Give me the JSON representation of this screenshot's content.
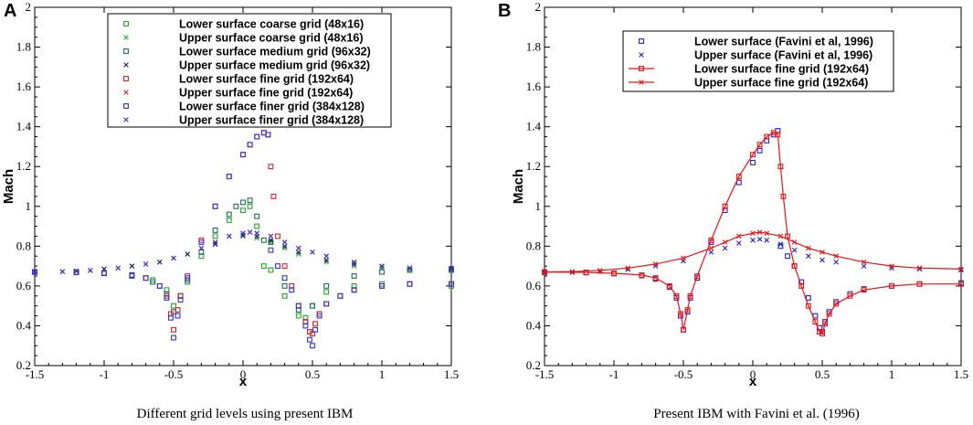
{
  "chart_data": [
    {
      "panel": "A",
      "type": "scatter",
      "caption": "Different grid levels using present IBM",
      "xlabel": "x",
      "ylabel": "Mach",
      "xlim": [
        -1.5,
        1.5
      ],
      "ylim": [
        0.2,
        2.0
      ],
      "xticks": [
        -1.5,
        -1,
        -0.5,
        0,
        0.5,
        1,
        1.5
      ],
      "xtick_labels": [
        "-1.5",
        "-1",
        "-0.5",
        "0",
        "0.5",
        "1",
        "1.5"
      ],
      "yticks": [
        0.2,
        0.4,
        0.6,
        0.8,
        1.0,
        1.2,
        1.4,
        1.6,
        1.8,
        2.0
      ],
      "ytick_labels": [
        "0.2",
        "0.4",
        "0.6",
        "0.8",
        "1",
        "1.2",
        "1.4",
        "1.6",
        "1.8",
        "2"
      ],
      "legend_position": "top-right",
      "series": [
        {
          "name": "Lower surface coarse grid (48x16)",
          "color": "#22aa22",
          "marker": "square",
          "x": [
            -1.5,
            -1.2,
            -1.0,
            -0.8,
            -0.65,
            -0.55,
            -0.5,
            -0.45,
            -0.4,
            -0.3,
            -0.2,
            -0.1,
            0.0,
            0.05,
            0.1,
            0.15,
            0.2,
            0.3,
            0.4,
            0.45,
            0.5,
            0.6,
            0.8,
            1.0,
            1.2,
            1.5
          ],
          "y": [
            0.67,
            0.67,
            0.665,
            0.655,
            0.63,
            0.58,
            0.5,
            0.55,
            0.62,
            0.75,
            0.85,
            0.93,
            0.98,
            1.0,
            0.9,
            0.7,
            0.68,
            0.55,
            0.45,
            0.44,
            0.5,
            0.57,
            0.6,
            0.61,
            0.61,
            0.6
          ]
        },
        {
          "name": "Upper surface coarse grid (48x16)",
          "color": "#22aa22",
          "marker": "x",
          "x": [
            -1.5,
            -1.2,
            -1.0,
            -0.8,
            -0.6,
            -0.4,
            -0.2,
            0.0,
            0.1,
            0.2,
            0.3,
            0.4,
            0.6,
            0.8,
            1.0,
            1.2,
            1.5
          ],
          "y": [
            0.67,
            0.675,
            0.685,
            0.7,
            0.72,
            0.76,
            0.81,
            0.85,
            0.84,
            0.82,
            0.79,
            0.76,
            0.72,
            0.7,
            0.69,
            0.68,
            0.68
          ]
        },
        {
          "name": "Lower surface medium grid (96x32)",
          "color": "#1f6b5e",
          "marker": "square",
          "x": [
            -1.5,
            -1.2,
            -1.0,
            -0.8,
            -0.65,
            -0.55,
            -0.5,
            -0.45,
            -0.4,
            -0.3,
            -0.2,
            -0.1,
            -0.05,
            0.0,
            0.05,
            0.1,
            0.15,
            0.2,
            0.3,
            0.4,
            0.45,
            0.5,
            0.6,
            0.8,
            1.0,
            1.2,
            1.5
          ],
          "y": [
            0.67,
            0.668,
            0.663,
            0.65,
            0.62,
            0.56,
            0.47,
            0.55,
            0.63,
            0.77,
            0.88,
            0.96,
            1.0,
            1.02,
            1.03,
            0.95,
            0.83,
            0.82,
            0.6,
            0.48,
            0.42,
            0.5,
            0.6,
            0.65,
            0.67,
            0.68,
            0.68
          ]
        },
        {
          "name": "Upper surface medium grid (96x32)",
          "color": "#1a1a6e",
          "marker": "x",
          "x": [
            -1.5,
            -1.2,
            -1.0,
            -0.8,
            -0.6,
            -0.4,
            -0.2,
            0.0,
            0.1,
            0.2,
            0.3,
            0.4,
            0.6,
            0.8,
            1.0,
            1.2,
            1.5
          ],
          "y": [
            0.67,
            0.675,
            0.685,
            0.7,
            0.72,
            0.76,
            0.81,
            0.855,
            0.85,
            0.83,
            0.8,
            0.77,
            0.73,
            0.71,
            0.7,
            0.69,
            0.69
          ]
        },
        {
          "name": "Lower surface fine grid (192x64)",
          "color": "#dd2222",
          "marker": "square",
          "x": [
            -1.5,
            -1.2,
            -1.0,
            -0.8,
            -0.7,
            -0.6,
            -0.55,
            -0.52,
            -0.5,
            -0.47,
            -0.45,
            -0.4,
            -0.3,
            -0.2,
            -0.1,
            0.0,
            0.05,
            0.1,
            0.15,
            0.18,
            0.2,
            0.22,
            0.25,
            0.3,
            0.35,
            0.4,
            0.45,
            0.48,
            0.5,
            0.52,
            0.55,
            0.6,
            0.7,
            0.8,
            1.0,
            1.2,
            1.5
          ],
          "y": [
            0.67,
            0.668,
            0.664,
            0.655,
            0.64,
            0.6,
            0.55,
            0.46,
            0.38,
            0.48,
            0.55,
            0.65,
            0.83,
            1.0,
            1.15,
            1.26,
            1.31,
            1.35,
            1.37,
            1.36,
            1.2,
            1.05,
            0.85,
            0.7,
            0.6,
            0.5,
            0.42,
            0.37,
            0.36,
            0.41,
            0.46,
            0.51,
            0.55,
            0.58,
            0.6,
            0.61,
            0.61
          ]
        },
        {
          "name": "Upper surface fine grid (192x64)",
          "color": "#dd2222",
          "marker": "x",
          "x": [
            -1.5,
            -1.3,
            -1.1,
            -0.9,
            -0.7,
            -0.5,
            -0.3,
            -0.2,
            -0.1,
            0.0,
            0.05,
            0.1,
            0.2,
            0.3,
            0.4,
            0.5,
            0.6,
            0.8,
            1.0,
            1.2,
            1.5
          ],
          "y": [
            0.67,
            0.672,
            0.678,
            0.69,
            0.71,
            0.74,
            0.79,
            0.82,
            0.85,
            0.865,
            0.87,
            0.865,
            0.85,
            0.82,
            0.79,
            0.77,
            0.75,
            0.72,
            0.7,
            0.69,
            0.685
          ]
        },
        {
          "name": "Lower surface finer grid (384x128)",
          "color": "#3333dd",
          "marker": "square",
          "x": [
            -1.5,
            -1.2,
            -1.0,
            -0.8,
            -0.7,
            -0.6,
            -0.55,
            -0.52,
            -0.5,
            -0.47,
            -0.45,
            -0.4,
            -0.3,
            -0.2,
            -0.1,
            0.0,
            0.05,
            0.1,
            0.15,
            0.18,
            0.2,
            0.25,
            0.3,
            0.35,
            0.4,
            0.45,
            0.48,
            0.5,
            0.52,
            0.55,
            0.6,
            0.7,
            0.8,
            1.0,
            1.2,
            1.5
          ],
          "y": [
            0.67,
            0.668,
            0.664,
            0.655,
            0.64,
            0.6,
            0.54,
            0.44,
            0.34,
            0.45,
            0.53,
            0.64,
            0.82,
            1.0,
            1.15,
            1.26,
            1.31,
            1.35,
            1.37,
            1.36,
            0.78,
            0.7,
            0.64,
            0.58,
            0.5,
            0.4,
            0.33,
            0.3,
            0.38,
            0.45,
            0.51,
            0.55,
            0.58,
            0.6,
            0.61,
            0.61
          ]
        },
        {
          "name": "Upper surface finer grid (384x128)",
          "color": "#3333dd",
          "marker": "x",
          "x": [
            -1.5,
            -1.3,
            -1.1,
            -0.9,
            -0.7,
            -0.5,
            -0.3,
            -0.2,
            -0.1,
            0.0,
            0.05,
            0.1,
            0.2,
            0.3,
            0.4,
            0.5,
            0.6,
            0.8,
            1.0,
            1.2,
            1.5
          ],
          "y": [
            0.67,
            0.672,
            0.678,
            0.69,
            0.71,
            0.74,
            0.79,
            0.82,
            0.85,
            0.865,
            0.87,
            0.865,
            0.85,
            0.82,
            0.79,
            0.77,
            0.75,
            0.72,
            0.7,
            0.69,
            0.685
          ]
        }
      ]
    },
    {
      "panel": "B",
      "type": "scatter",
      "caption": "Present IBM with Favini et al. (1996)",
      "xlabel": "x",
      "ylabel": "Mach",
      "xlim": [
        -1.5,
        1.5
      ],
      "ylim": [
        0.2,
        2.0
      ],
      "xticks": [
        -1.5,
        -1,
        -0.5,
        0,
        0.5,
        1,
        1.5
      ],
      "xtick_labels": [
        "-1.5",
        "-1",
        "-0.5",
        "0",
        "0.5",
        "1",
        "1.5"
      ],
      "yticks": [
        0.2,
        0.4,
        0.6,
        0.8,
        1.0,
        1.2,
        1.4,
        1.6,
        1.8,
        2.0
      ],
      "ytick_labels": [
        "0.2",
        "0.4",
        "0.6",
        "0.8",
        "1",
        "1.2",
        "1.4",
        "1.6",
        "1.8",
        "2"
      ],
      "legend_position": "top-right",
      "series": [
        {
          "name": "Lower surface (Favini et al, 1996)",
          "color": "#2222cc",
          "marker": "square",
          "line": false,
          "x": [
            -1.5,
            -1.2,
            -1.0,
            -0.8,
            -0.7,
            -0.6,
            -0.55,
            -0.52,
            -0.5,
            -0.47,
            -0.45,
            -0.4,
            -0.3,
            -0.2,
            -0.1,
            0.0,
            0.05,
            0.1,
            0.15,
            0.18,
            0.2,
            0.25,
            0.3,
            0.35,
            0.4,
            0.45,
            0.48,
            0.5,
            0.52,
            0.55,
            0.6,
            0.7,
            0.8,
            1.0,
            1.2,
            1.5
          ],
          "y": [
            0.67,
            0.667,
            0.662,
            0.652,
            0.635,
            0.595,
            0.54,
            0.45,
            0.38,
            0.47,
            0.54,
            0.64,
            0.82,
            0.98,
            1.12,
            1.22,
            1.28,
            1.33,
            1.36,
            1.38,
            0.8,
            0.75,
            0.7,
            0.62,
            0.54,
            0.45,
            0.39,
            0.37,
            0.42,
            0.47,
            0.52,
            0.56,
            0.585,
            0.6,
            0.61,
            0.615
          ]
        },
        {
          "name": "Upper surface (Favini et al, 1996)",
          "color": "#2222cc",
          "marker": "x",
          "line": false,
          "x": [
            -1.5,
            -1.3,
            -1.1,
            -0.9,
            -0.7,
            -0.5,
            -0.3,
            -0.2,
            -0.1,
            0.0,
            0.05,
            0.1,
            0.2,
            0.3,
            0.4,
            0.5,
            0.6,
            0.8,
            1.0,
            1.2,
            1.5
          ],
          "y": [
            0.665,
            0.668,
            0.673,
            0.683,
            0.7,
            0.725,
            0.77,
            0.79,
            0.815,
            0.83,
            0.835,
            0.83,
            0.81,
            0.78,
            0.75,
            0.73,
            0.72,
            0.7,
            0.69,
            0.685,
            0.68
          ]
        },
        {
          "name": "Lower surface fine grid (192x64)",
          "color": "#ee1111",
          "marker": "square",
          "line": true,
          "x": [
            -1.5,
            -1.2,
            -1.0,
            -0.8,
            -0.7,
            -0.6,
            -0.55,
            -0.52,
            -0.5,
            -0.47,
            -0.45,
            -0.4,
            -0.3,
            -0.2,
            -0.1,
            0.0,
            0.05,
            0.1,
            0.15,
            0.18,
            0.2,
            0.22,
            0.25,
            0.3,
            0.35,
            0.4,
            0.45,
            0.48,
            0.5,
            0.52,
            0.55,
            0.6,
            0.7,
            0.8,
            1.0,
            1.2,
            1.5
          ],
          "y": [
            0.67,
            0.668,
            0.664,
            0.655,
            0.64,
            0.6,
            0.55,
            0.46,
            0.38,
            0.48,
            0.55,
            0.65,
            0.83,
            1.0,
            1.15,
            1.26,
            1.31,
            1.35,
            1.37,
            1.36,
            1.2,
            1.05,
            0.85,
            0.7,
            0.6,
            0.5,
            0.42,
            0.37,
            0.36,
            0.41,
            0.46,
            0.51,
            0.55,
            0.58,
            0.6,
            0.61,
            0.61
          ]
        },
        {
          "name": "Upper surface fine grid (192x64)",
          "color": "#ee1111",
          "marker": "x",
          "line": true,
          "x": [
            -1.5,
            -1.3,
            -1.1,
            -0.9,
            -0.7,
            -0.5,
            -0.3,
            -0.2,
            -0.1,
            0.0,
            0.05,
            0.1,
            0.2,
            0.3,
            0.4,
            0.5,
            0.6,
            0.8,
            1.0,
            1.2,
            1.5
          ],
          "y": [
            0.67,
            0.672,
            0.678,
            0.69,
            0.71,
            0.74,
            0.79,
            0.82,
            0.85,
            0.865,
            0.87,
            0.865,
            0.85,
            0.82,
            0.79,
            0.77,
            0.75,
            0.72,
            0.7,
            0.69,
            0.685
          ]
        }
      ]
    }
  ]
}
